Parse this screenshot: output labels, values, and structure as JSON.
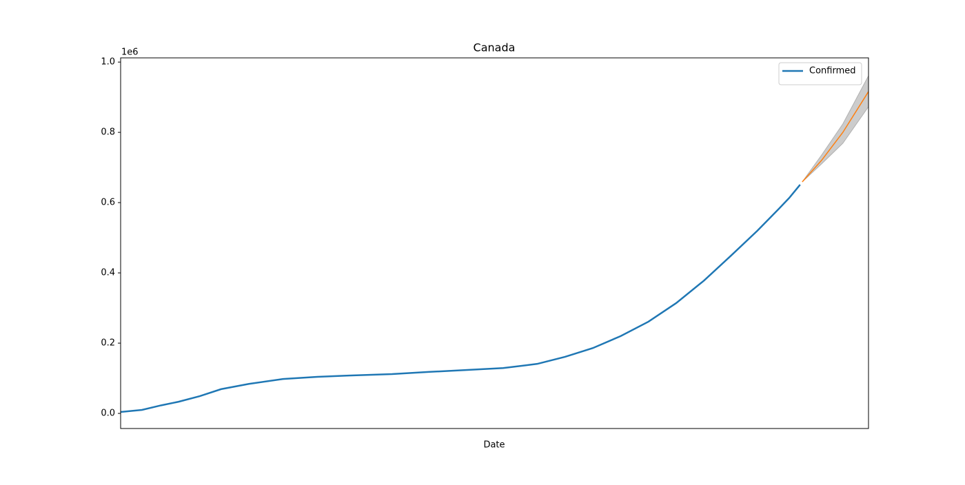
{
  "chart_data": {
    "type": "line",
    "title": "Canada",
    "x_label": "Date",
    "y_offset_label": "1e6",
    "xlim": [
      0,
      350
    ],
    "ylim": [
      -0.043,
      1.012
    ],
    "yticks": [
      {
        "value": 0,
        "label": "0.0"
      },
      0.2,
      0.4,
      0.6,
      0.8,
      {
        "value": 1,
        "label": "1.0"
      }
    ],
    "legend": "upper right",
    "series": [
      {
        "name": "Confirmed",
        "color": "#1f77b4",
        "x": [
          0,
          10,
          19,
          27,
          37,
          47,
          60,
          76,
          92,
          108,
          127,
          144,
          163,
          179,
          195,
          208,
          221,
          234,
          247,
          260,
          273,
          286,
          298,
          308,
          313,
          318
        ],
        "values": [
          0.004,
          0.01,
          0.023,
          0.033,
          0.049,
          0.069,
          0.084,
          0.098,
          0.104,
          0.108,
          0.112,
          0.118,
          0.124,
          0.129,
          0.141,
          0.161,
          0.186,
          0.22,
          0.261,
          0.314,
          0.378,
          0.451,
          0.52,
          0.582,
          0.614,
          0.651
        ]
      },
      {
        "color": "#ff7f0e",
        "band_color": "#b0b0b0",
        "x": [
          319,
          328,
          338,
          350
        ],
        "values": [
          0.659,
          0.72,
          0.8,
          0.916
        ],
        "lower": [
          0.659,
          0.71,
          0.769,
          0.873
        ],
        "upper": [
          0.659,
          0.735,
          0.824,
          0.961
        ]
      }
    ]
  }
}
